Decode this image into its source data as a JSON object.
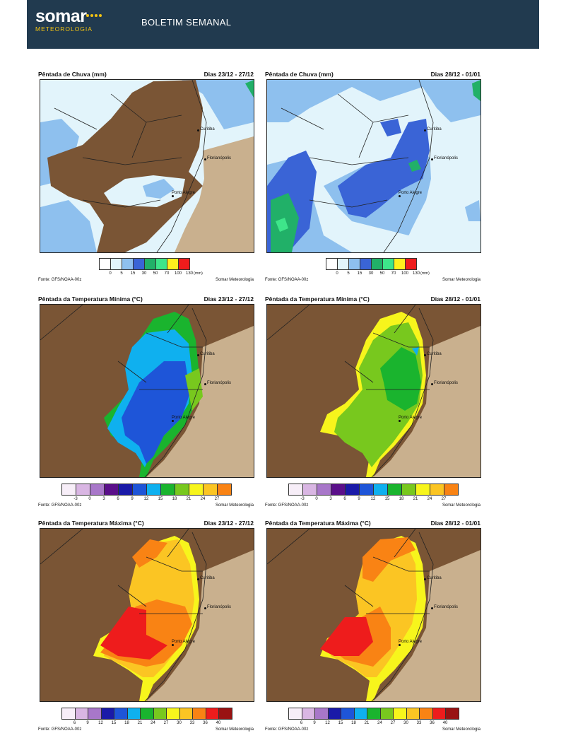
{
  "header": {
    "logo_main": "somar",
    "logo_sub": "METEOROLOGIA",
    "title": "BOLETIM SEMANAL"
  },
  "colors": {
    "header_bg": "#213a4f",
    "logo_accent": "#f3c312",
    "foreign_land": "#7a5535",
    "ocean": "#c9b08e"
  },
  "cities": {
    "curitiba": "Curitiba",
    "florianopolis": "Florianópolis",
    "porto_alegre": "Porto Alegre"
  },
  "panels": {
    "rain1": {
      "title": "Pêntada de Chuva (mm)",
      "period": "Dias 23/12 - 27/12",
      "source": "Fonte: GFS/NOAA-00z",
      "credit": "Somar Meteorologia"
    },
    "rain2": {
      "title": "Pêntada de Chuva (mm)",
      "period": "Dias 28/12 - 01/01",
      "source": "Fonte: GFS/NOAA-00z",
      "credit": "Somar Meteorologia"
    },
    "tmin1": {
      "title": "Pêntada da Temperatura Mínima (°C)",
      "period": "Dias 23/12 - 27/12",
      "source": "Fonte: GFS/NOAA-00z",
      "credit": "Somar Meteorologia"
    },
    "tmin2": {
      "title": "Pêntada da Temperatura Mínima (°C)",
      "period": "Dias 28/12 - 01/01",
      "source": "Fonte: GFS/NOAA-00z",
      "credit": "Somar Meteorologia"
    },
    "tmax1": {
      "title": "Pêntada da Temperatura Máxima (°C)",
      "period": "Dias 23/12 - 27/12",
      "source": "Fonte: GFS/NOAA-00z",
      "credit": "Somar Meteorologia"
    },
    "tmax2": {
      "title": "Pêntada da Temperatura Máxima (°C)",
      "period": "Dias 28/12 - 01/01",
      "source": "Fonte: GFS/NOAA-00z",
      "credit": "Somar Meteorologia"
    }
  },
  "legends": {
    "rain": {
      "unit": "(mm)",
      "colors": [
        "#ffffff",
        "#e2f4fb",
        "#8ec0ee",
        "#3a64d6",
        "#21b068",
        "#3ee58a",
        "#fff01e",
        "#ee1c1c"
      ],
      "ticks": [
        "0",
        "5",
        "15",
        "30",
        "50",
        "70",
        "100",
        "130"
      ]
    },
    "tmin": {
      "colors": [
        "#f7eef8",
        "#d9b6e3",
        "#a877c9",
        "#5a0f8a",
        "#1a1aa8",
        "#1e55d8",
        "#0fb0ef",
        "#1ab42e",
        "#78c81e",
        "#f7f51c",
        "#fbc523",
        "#f98314"
      ],
      "ticks": [
        "-3",
        "0",
        "3",
        "6",
        "9",
        "12",
        "15",
        "18",
        "21",
        "24",
        "27"
      ]
    },
    "tmax": {
      "colors": [
        "#f7eef8",
        "#d9b6e3",
        "#a877c9",
        "#1a1aa8",
        "#1e55d8",
        "#0fb0ef",
        "#1ab42e",
        "#78c81e",
        "#f7f51c",
        "#fbc523",
        "#f98314",
        "#ee1c1c",
        "#991212"
      ],
      "ticks": [
        "6",
        "9",
        "12",
        "15",
        "18",
        "21",
        "24",
        "27",
        "30",
        "33",
        "36",
        "40"
      ]
    }
  }
}
